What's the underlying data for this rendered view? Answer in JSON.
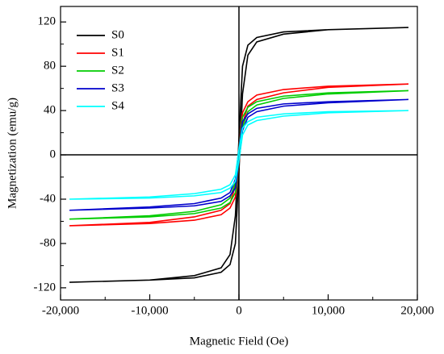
{
  "chart_data": {
    "type": "line",
    "xlabel": "Magnetic Field (Oe)",
    "ylabel": "Magnetization (emu/g)",
    "x": [
      19000,
      10000,
      5000,
      2000,
      1000,
      400,
      0,
      -400,
      -1000,
      -2000,
      -5000,
      -10000,
      -19000,
      -19000,
      -10000,
      -5000,
      -2000,
      -1000,
      -400,
      0,
      400,
      1000,
      2000,
      5000,
      10000,
      19000
    ],
    "series": [
      {
        "name": "S0",
        "color": "#000000",
        "values": [
          115,
          113,
          111,
          106,
          99,
          80,
          15,
          -55,
          -90,
          -102,
          -109,
          -113,
          -115,
          -115,
          -113,
          -111,
          -106,
          -99,
          -80,
          -15,
          55,
          90,
          102,
          109,
          113,
          115
        ]
      },
      {
        "name": "S1",
        "color": "#ff0000",
        "values": [
          64,
          62,
          59,
          54,
          48,
          38,
          8,
          -28,
          -44,
          -50,
          -56,
          -61,
          -64,
          -64,
          -62,
          -59,
          -54,
          -48,
          -38,
          -8,
          28,
          44,
          50,
          56,
          61,
          64
        ]
      },
      {
        "name": "S2",
        "color": "#00cc00",
        "values": [
          58,
          56,
          53,
          48,
          43,
          34,
          7,
          -25,
          -39,
          -45,
          -51,
          -55,
          -58,
          -58,
          -56,
          -53,
          -48,
          -43,
          -34,
          -7,
          25,
          39,
          45,
          51,
          55,
          58
        ]
      },
      {
        "name": "S3",
        "color": "#0000cc",
        "values": [
          50,
          48,
          46,
          42,
          37,
          30,
          6,
          -22,
          -34,
          -39,
          -44,
          -47,
          -50,
          -50,
          -48,
          -46,
          -42,
          -37,
          -30,
          -6,
          22,
          34,
          39,
          44,
          47,
          50
        ]
      },
      {
        "name": "S4",
        "color": "#00ffff",
        "values": [
          40,
          39,
          37,
          34,
          30,
          24,
          5,
          -18,
          -27,
          -31,
          -35,
          -38,
          -40,
          -40,
          -39,
          -37,
          -34,
          -30,
          -24,
          -5,
          18,
          27,
          31,
          35,
          38,
          40
        ]
      }
    ],
    "xlim": [
      -20000,
      20000
    ],
    "xticks": [
      {
        "value": -20000,
        "label": "-20,000"
      },
      {
        "value": -10000,
        "label": "-10,000"
      },
      0,
      {
        "value": 10000,
        "label": "10,000"
      },
      {
        "value": 20000,
        "label": "20,000"
      }
    ],
    "xminorticks": [
      -15000,
      -5000,
      5000,
      15000
    ],
    "ylim": [
      -131,
      134
    ],
    "yticks": [
      -120,
      -80,
      -40,
      0,
      40,
      80,
      120
    ],
    "yminorticks": [
      -100,
      -60,
      -20,
      20,
      60,
      100
    ],
    "legend": "upper left"
  }
}
